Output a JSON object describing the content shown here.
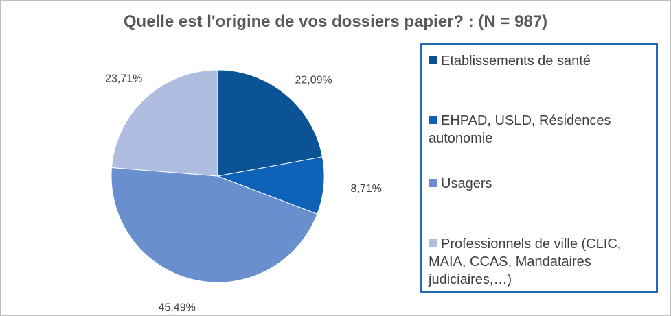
{
  "title": "Quelle est l'origine de vos dossiers papier? : (N = 987)",
  "chart_data": {
    "type": "pie",
    "title": "Quelle est l'origine de vos dossiers papier? : (N = 987)",
    "categories": [
      "Etablissements de santé",
      "EHPAD, USLD, Résidences autonomie",
      "Usagers",
      "Professionnels de ville (CLIC, MAIA, CCAS, Mandataires judiciaires,…)"
    ],
    "values": [
      22.09,
      8.71,
      45.49,
      23.71
    ],
    "labels": [
      "22,09%",
      "8,71%",
      "45,49%",
      "23,71%"
    ],
    "colors": [
      "#0b5394",
      "#0e63b8",
      "#6a8fcf",
      "#aebde0"
    ],
    "legend_position": "right"
  },
  "legend": {
    "items": [
      {
        "label": "Etablissements de santé",
        "color": "#0b5394"
      },
      {
        "label": "EHPAD, USLD, Résidences autonomie",
        "color": "#0e63b8"
      },
      {
        "label": "Usagers",
        "color": "#6a8fcf"
      },
      {
        "label": "Professionnels de ville (CLIC, MAIA, CCAS, Mandataires judiciaires,…)",
        "color": "#aebde0"
      }
    ]
  }
}
